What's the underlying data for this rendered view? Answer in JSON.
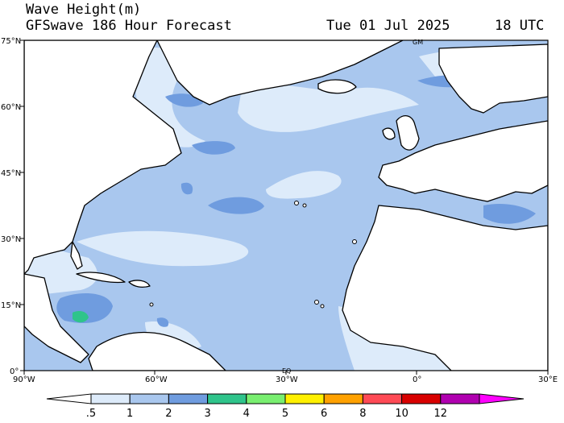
{
  "header": {
    "line1": "Wave Height(m)",
    "line2": "GFSwave 186 Hour Forecast",
    "date": "Tue 01 Jul 2025",
    "time": "18 UTC"
  },
  "map": {
    "lat_labels": [
      "75°N",
      "60°N",
      "45°N",
      "30°N",
      "15°N",
      "0°"
    ],
    "lon_labels": [
      "90°W",
      "60°W",
      "30°W",
      "0°",
      "30°E"
    ],
    "inset_labels": [
      "GM",
      "EQ"
    ],
    "region": "North Atlantic"
  },
  "colorbar": {
    "labels": [
      ".5",
      "1",
      "2",
      "3",
      "4",
      "5",
      "6",
      "8",
      "10",
      "12"
    ],
    "colors": [
      "#ffffff",
      "#ddebfa",
      "#a9c7ee",
      "#6f9cdf",
      "#2fc48b",
      "#79ef70",
      "#fff000",
      "#ffa100",
      "#ff4a55",
      "#d80000",
      "#b000b0",
      "#ff00ff"
    ]
  },
  "colors": {
    "ocean_light": "#a9c7ee",
    "ocean_pale": "#ddebfa",
    "ocean_mid": "#6f9cdf",
    "ocean_green": "#2fc48b",
    "land": "#ffffff",
    "coast": "#000000"
  }
}
